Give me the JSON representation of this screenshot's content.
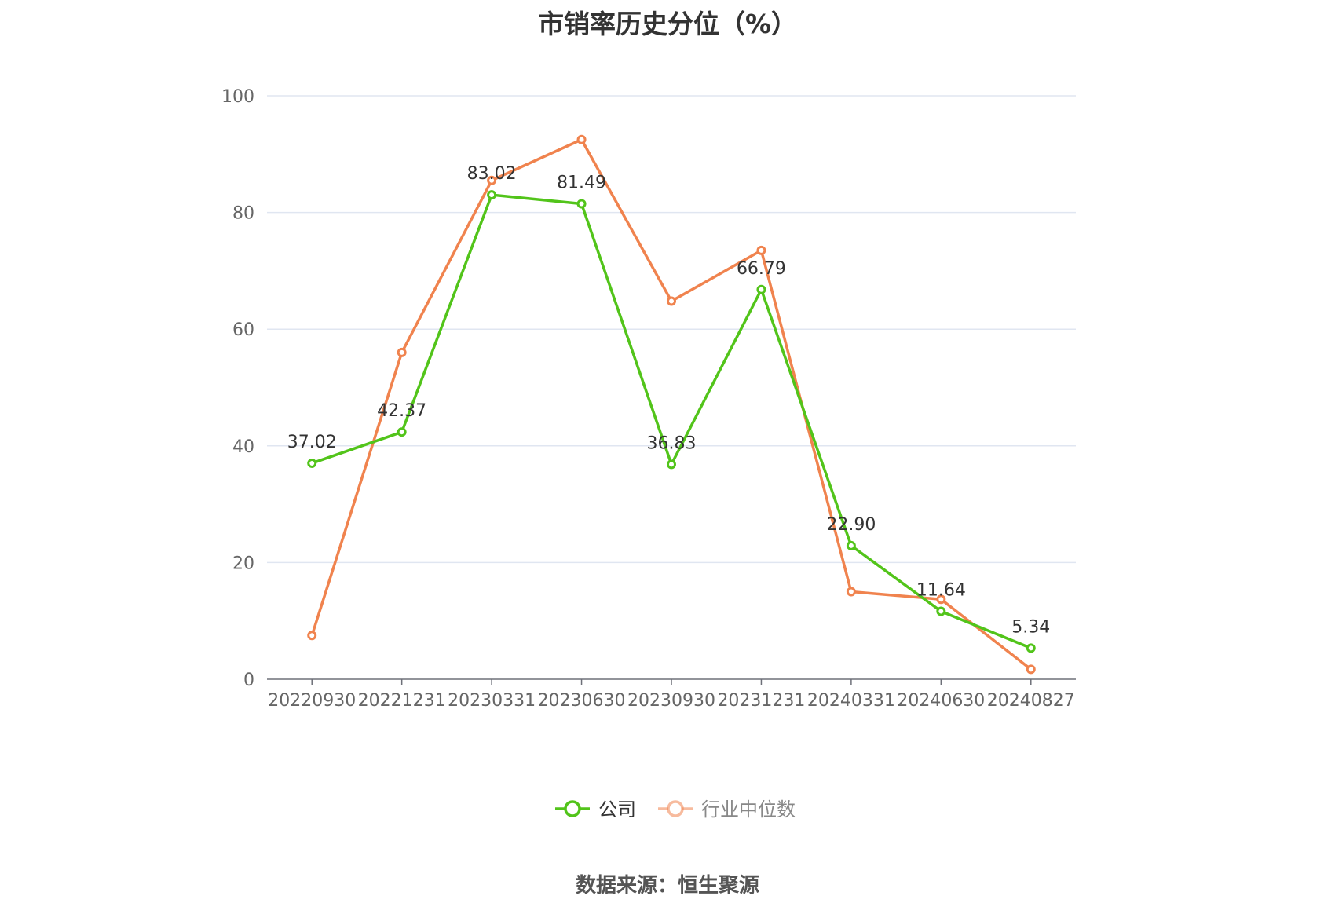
{
  "title": "市销率历史分位（%）",
  "source": "数据来源：恒生聚源",
  "chart_data": {
    "type": "line",
    "categories": [
      "20220930",
      "20221231",
      "20230331",
      "20230630",
      "20230930",
      "20231231",
      "20240331",
      "20240630",
      "20240827"
    ],
    "ylim": [
      0,
      100
    ],
    "yticks": [
      0,
      20,
      40,
      60,
      80,
      100
    ],
    "grid": true,
    "legend_position": "bottom",
    "series": [
      {
        "name": "公司",
        "color": "#52c41a",
        "values": [
          37.02,
          42.37,
          83.02,
          81.49,
          36.83,
          66.79,
          22.9,
          11.64,
          5.34
        ],
        "labels": [
          "37.02",
          "42.37",
          "83.02",
          "81.49",
          "36.83",
          "66.79",
          "22.90",
          "11.64",
          "5.34"
        ]
      },
      {
        "name": "行业中位数",
        "color": "#f0834e",
        "values": [
          7.5,
          56.0,
          85.5,
          92.5,
          64.8,
          73.5,
          15.0,
          13.7,
          1.7
        ]
      }
    ]
  }
}
